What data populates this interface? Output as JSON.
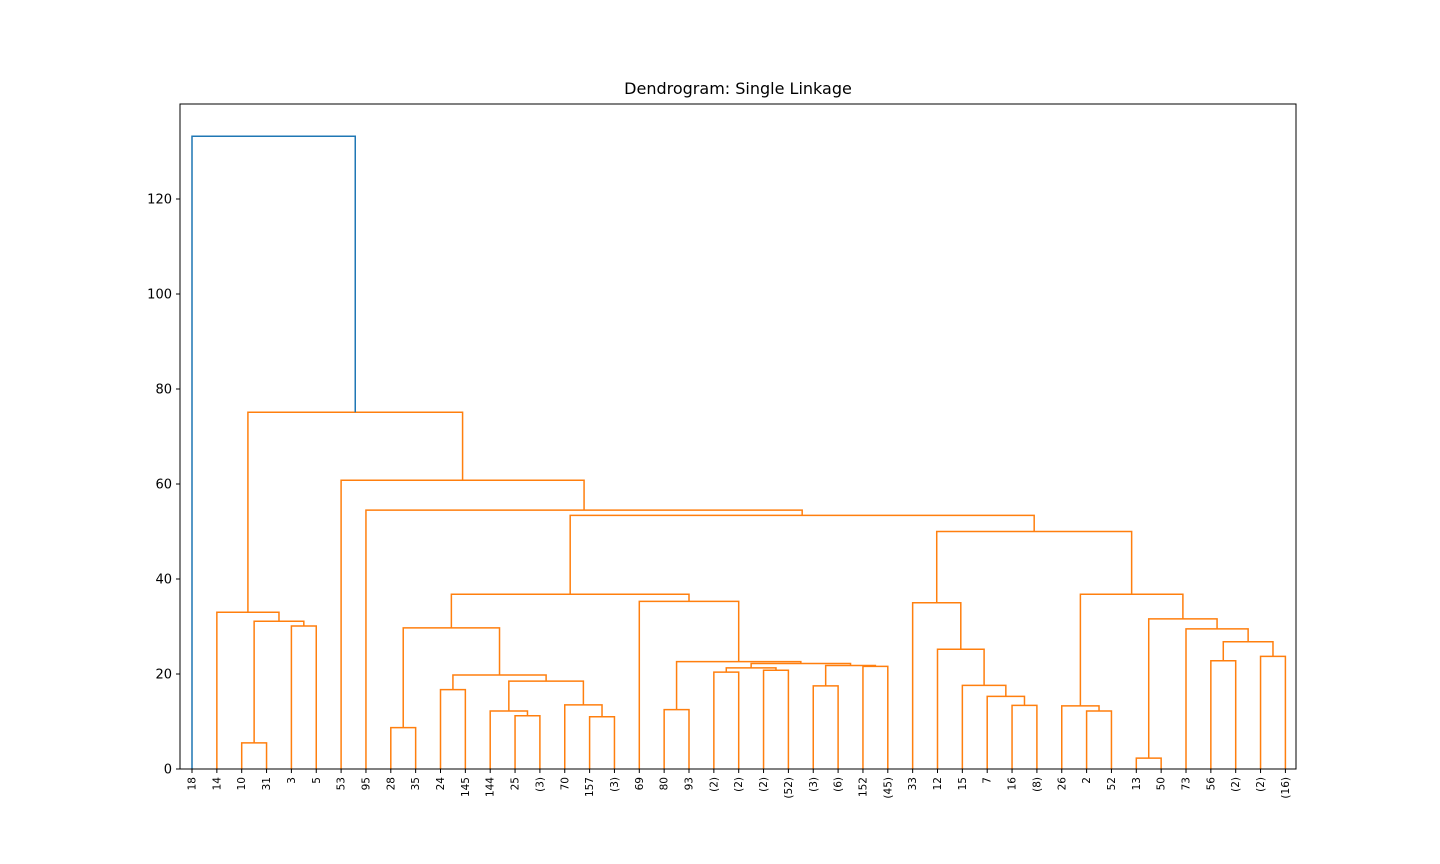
{
  "chart_data": {
    "type": "dendrogram",
    "title": "Dendrogram: Single Linkage",
    "xlabel": "",
    "ylabel": "",
    "ylim": [
      0,
      140
    ],
    "yticks": [
      0,
      20,
      40,
      60,
      80,
      100,
      120
    ],
    "grid": false,
    "colors": {
      "above_threshold": "#1f77b4",
      "cluster": "#ff7f0e",
      "axis": "#000000"
    },
    "leaves": [
      "18",
      "14",
      "10",
      "31",
      "3",
      "5",
      "53",
      "95",
      "28",
      "35",
      "24",
      "145",
      "144",
      "25",
      "(3)",
      "70",
      "157",
      "(3)",
      "69",
      "80",
      "93",
      "(2)",
      "(2)",
      "(2)",
      "(52)",
      "(3)",
      "(6)",
      "152",
      "(45)",
      "33",
      "12",
      "15",
      "7",
      "16",
      "(8)",
      "26",
      "2",
      "52",
      "13",
      "50",
      "73",
      "56",
      "(2)",
      "(2)",
      "(16)"
    ],
    "merges": [
      {
        "a": "L2",
        "b": "L3",
        "height": 5.5,
        "color": "cluster"
      },
      {
        "a": "L4",
        "b": "L5",
        "height": 30.1,
        "color": "cluster"
      },
      {
        "a": "M0",
        "b": "M1",
        "height": 31.1,
        "color": "cluster"
      },
      {
        "a": "L1",
        "b": "M2",
        "height": 33.0,
        "color": "cluster"
      },
      {
        "a": "L8",
        "b": "L9",
        "height": 8.7,
        "color": "cluster"
      },
      {
        "a": "L10",
        "b": "L11",
        "height": 16.7,
        "color": "cluster"
      },
      {
        "a": "L13",
        "b": "L14",
        "height": 11.2,
        "color": "cluster"
      },
      {
        "a": "L12",
        "b": "M6",
        "height": 12.2,
        "color": "cluster"
      },
      {
        "a": "L16",
        "b": "L17",
        "height": 11.0,
        "color": "cluster"
      },
      {
        "a": "L15",
        "b": "M8",
        "height": 13.5,
        "color": "cluster"
      },
      {
        "a": "M7",
        "b": "M9",
        "height": 18.5,
        "color": "cluster"
      },
      {
        "a": "M5",
        "b": "M10",
        "height": 19.8,
        "color": "cluster"
      },
      {
        "a": "M4",
        "b": "M11",
        "height": 29.7,
        "color": "cluster"
      },
      {
        "a": "L19",
        "b": "L20",
        "height": 12.5,
        "color": "cluster"
      },
      {
        "a": "L21",
        "b": "L22",
        "height": 20.4,
        "color": "cluster"
      },
      {
        "a": "L23",
        "b": "L24",
        "height": 20.8,
        "color": "cluster"
      },
      {
        "a": "M14",
        "b": "M15",
        "height": 21.3,
        "color": "cluster"
      },
      {
        "a": "L25",
        "b": "L26",
        "height": 17.5,
        "color": "cluster"
      },
      {
        "a": "L27",
        "b": "L28",
        "height": 21.6,
        "color": "cluster"
      },
      {
        "a": "M17",
        "b": "M18",
        "height": 21.8,
        "color": "cluster"
      },
      {
        "a": "M16",
        "b": "M19",
        "height": 22.2,
        "color": "cluster"
      },
      {
        "a": "M13",
        "b": "M20",
        "height": 22.6,
        "color": "cluster"
      },
      {
        "a": "L18",
        "b": "M21",
        "height": 35.3,
        "color": "cluster"
      },
      {
        "a": "M12",
        "b": "M22",
        "height": 36.8,
        "color": "cluster"
      },
      {
        "a": "L33",
        "b": "L34",
        "height": 13.4,
        "color": "cluster"
      },
      {
        "a": "L32",
        "b": "M24",
        "height": 15.3,
        "color": "cluster"
      },
      {
        "a": "L31",
        "b": "M25",
        "height": 17.6,
        "color": "cluster"
      },
      {
        "a": "L30",
        "b": "M26",
        "height": 25.2,
        "color": "cluster"
      },
      {
        "a": "L29",
        "b": "M27",
        "height": 35.0,
        "color": "cluster"
      },
      {
        "a": "L36",
        "b": "L37",
        "height": 12.2,
        "color": "cluster"
      },
      {
        "a": "L35",
        "b": "M29",
        "height": 13.3,
        "color": "cluster"
      },
      {
        "a": "L38",
        "b": "L39",
        "height": 2.3,
        "color": "cluster"
      },
      {
        "a": "L41",
        "b": "L42",
        "height": 22.8,
        "color": "cluster"
      },
      {
        "a": "L43",
        "b": "L44",
        "height": 23.7,
        "color": "cluster"
      },
      {
        "a": "M32",
        "b": "M33",
        "height": 26.8,
        "color": "cluster"
      },
      {
        "a": "L40",
        "b": "M34",
        "height": 29.5,
        "color": "cluster"
      },
      {
        "a": "M31",
        "b": "M35",
        "height": 31.6,
        "color": "cluster"
      },
      {
        "a": "M30",
        "b": "M36",
        "height": 36.8,
        "color": "cluster"
      },
      {
        "a": "M28",
        "b": "M37",
        "height": 50.0,
        "color": "cluster"
      },
      {
        "a": "M23",
        "b": "M38",
        "height": 53.4,
        "color": "cluster"
      },
      {
        "a": "L7",
        "b": "M39",
        "height": 54.5,
        "color": "cluster"
      },
      {
        "a": "L6",
        "b": "M40",
        "height": 60.8,
        "color": "cluster"
      },
      {
        "a": "M3",
        "b": "M41",
        "height": 75.1,
        "color": "cluster"
      },
      {
        "a": "L0",
        "b": "M42",
        "height": 133.2,
        "color": "above_threshold"
      }
    ]
  }
}
